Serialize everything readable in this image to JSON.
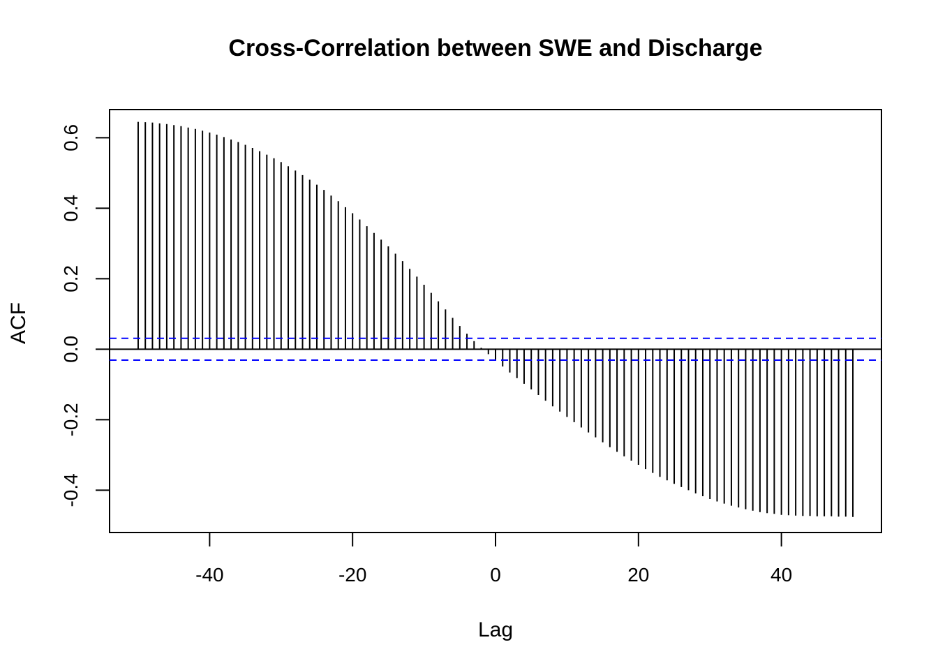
{
  "chart_data": {
    "type": "bar",
    "subtype": "ccf-stem",
    "title": "Cross-Correlation between SWE and Discharge",
    "xlabel": "Lag",
    "ylabel": "ACF",
    "xlim": [
      -54,
      54
    ],
    "ylim": [
      -0.52,
      0.68
    ],
    "x_ticks": [
      -40,
      -20,
      0,
      20,
      40
    ],
    "x_tick_labels": [
      "-40",
      "-20",
      "0",
      "20",
      "40"
    ],
    "y_ticks": [
      -0.4,
      -0.2,
      0.0,
      0.2,
      0.4,
      0.6
    ],
    "y_tick_labels": [
      "-0.4",
      "-0.2",
      "0.0",
      "0.2",
      "0.4",
      "0.6"
    ],
    "grid": false,
    "confidence_band": 0.031,
    "colors": {
      "stem": "#000000",
      "confidence": "#0000ff",
      "axis": "#000000"
    },
    "lags": [
      -50,
      -49,
      -48,
      -47,
      -46,
      -45,
      -44,
      -43,
      -42,
      -41,
      -40,
      -39,
      -38,
      -37,
      -36,
      -35,
      -34,
      -33,
      -32,
      -31,
      -30,
      -29,
      -28,
      -27,
      -26,
      -25,
      -24,
      -23,
      -22,
      -21,
      -20,
      -19,
      -18,
      -17,
      -16,
      -15,
      -14,
      -13,
      -12,
      -11,
      -10,
      -9,
      -8,
      -7,
      -6,
      -5,
      -4,
      -3,
      -2,
      -1,
      0,
      1,
      2,
      3,
      4,
      5,
      6,
      7,
      8,
      9,
      10,
      11,
      12,
      13,
      14,
      15,
      16,
      17,
      18,
      19,
      20,
      21,
      22,
      23,
      24,
      25,
      26,
      27,
      28,
      29,
      30,
      31,
      32,
      33,
      34,
      35,
      36,
      37,
      38,
      39,
      40,
      41,
      42,
      43,
      44,
      45,
      46,
      47,
      48,
      49,
      50
    ],
    "values": [
      0.645,
      0.644,
      0.643,
      0.641,
      0.639,
      0.636,
      0.633,
      0.629,
      0.625,
      0.62,
      0.615,
      0.609,
      0.602,
      0.595,
      0.588,
      0.58,
      0.571,
      0.562,
      0.552,
      0.542,
      0.531,
      0.519,
      0.507,
      0.494,
      0.481,
      0.467,
      0.452,
      0.436,
      0.42,
      0.403,
      0.386,
      0.368,
      0.349,
      0.33,
      0.311,
      0.292,
      0.271,
      0.25,
      0.228,
      0.206,
      0.183,
      0.16,
      0.136,
      0.113,
      0.089,
      0.066,
      0.044,
      0.023,
      0.004,
      -0.014,
      -0.032,
      -0.049,
      -0.066,
      -0.082,
      -0.098,
      -0.114,
      -0.13,
      -0.146,
      -0.162,
      -0.177,
      -0.192,
      -0.207,
      -0.222,
      -0.236,
      -0.25,
      -0.264,
      -0.278,
      -0.291,
      -0.304,
      -0.316,
      -0.328,
      -0.34,
      -0.351,
      -0.362,
      -0.372,
      -0.382,
      -0.391,
      -0.4,
      -0.409,
      -0.417,
      -0.425,
      -0.432,
      -0.438,
      -0.444,
      -0.449,
      -0.454,
      -0.458,
      -0.462,
      -0.465,
      -0.467,
      -0.47,
      -0.471,
      -0.472,
      -0.473,
      -0.473,
      -0.474,
      -0.474,
      -0.474,
      -0.475,
      -0.475,
      -0.476
    ]
  }
}
